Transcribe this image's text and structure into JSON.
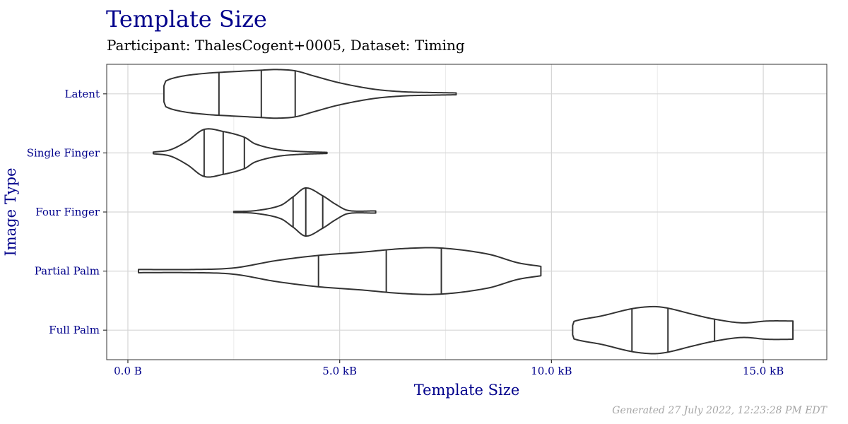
{
  "chart_data": {
    "type": "violin",
    "title": "Template Size",
    "subtitle": "Participant: ThalesCogent+0005, Dataset: Timing",
    "xlabel": "Template Size",
    "ylabel": "Image Type",
    "x_unit": "bytes",
    "xlim": [
      -500,
      16500
    ],
    "x_ticks": [
      {
        "value": 0,
        "label": "0.0 B"
      },
      {
        "value": 5000,
        "label": "5.0 kB"
      },
      {
        "value": 10000,
        "label": "10.0 kB"
      },
      {
        "value": 15000,
        "label": "15.0 kB"
      }
    ],
    "grid": true,
    "categories": [
      "Latent",
      "Single Finger",
      "Four Finger",
      "Partial Palm",
      "Full Palm"
    ],
    "series": [
      {
        "category": "Latent",
        "quantiles": [
          2150,
          3150,
          3950
        ],
        "density": [
          [
            850,
            0.3
          ],
          [
            850,
            0.45
          ],
          [
            1200,
            0.65
          ],
          [
            1800,
            0.78
          ],
          [
            2500,
            0.85
          ],
          [
            3100,
            0.9
          ],
          [
            3500,
            0.93
          ],
          [
            3950,
            0.88
          ],
          [
            4400,
            0.68
          ],
          [
            5000,
            0.42
          ],
          [
            5800,
            0.18
          ],
          [
            6500,
            0.08
          ],
          [
            7200,
            0.05
          ],
          [
            7750,
            0.035
          ],
          [
            7750,
            0.0
          ]
        ]
      },
      {
        "category": "Single Finger",
        "quantiles": [
          1800,
          2250,
          2750
        ],
        "density": [
          [
            600,
            0.03
          ],
          [
            1000,
            0.12
          ],
          [
            1400,
            0.45
          ],
          [
            1800,
            0.9
          ],
          [
            2250,
            0.82
          ],
          [
            2750,
            0.6
          ],
          [
            3000,
            0.35
          ],
          [
            3500,
            0.14
          ],
          [
            4000,
            0.06
          ],
          [
            4700,
            0.02
          ],
          [
            4700,
            0.0
          ]
        ]
      },
      {
        "category": "Four Finger",
        "quantiles": [
          3900,
          4200,
          4600
        ],
        "density": [
          [
            2500,
            0.02
          ],
          [
            3000,
            0.05
          ],
          [
            3600,
            0.25
          ],
          [
            3900,
            0.58
          ],
          [
            4200,
            0.92
          ],
          [
            4600,
            0.62
          ],
          [
            4900,
            0.3
          ],
          [
            5200,
            0.06
          ],
          [
            5850,
            0.04
          ],
          [
            5850,
            0.0
          ]
        ]
      },
      {
        "category": "Partial Palm",
        "quantiles": [
          4500,
          6100,
          7400
        ],
        "density": [
          [
            250,
            0.06
          ],
          [
            1500,
            0.06
          ],
          [
            2500,
            0.12
          ],
          [
            3500,
            0.4
          ],
          [
            4500,
            0.6
          ],
          [
            5500,
            0.72
          ],
          [
            6500,
            0.86
          ],
          [
            7400,
            0.88
          ],
          [
            8500,
            0.65
          ],
          [
            9200,
            0.32
          ],
          [
            9750,
            0.18
          ],
          [
            9750,
            0.0
          ]
        ]
      },
      {
        "category": "Full Palm",
        "quantiles": [
          11900,
          12750,
          13850
        ],
        "density": [
          [
            10500,
            0.18
          ],
          [
            10500,
            0.32
          ],
          [
            11200,
            0.55
          ],
          [
            11900,
            0.82
          ],
          [
            12400,
            0.9
          ],
          [
            12750,
            0.84
          ],
          [
            13350,
            0.6
          ],
          [
            13850,
            0.42
          ],
          [
            14500,
            0.28
          ],
          [
            15100,
            0.35
          ],
          [
            15700,
            0.35
          ],
          [
            15700,
            0.0
          ]
        ]
      }
    ]
  },
  "footer": {
    "note": "Generated 27 July 2022, 12:23:28 PM EDT"
  }
}
